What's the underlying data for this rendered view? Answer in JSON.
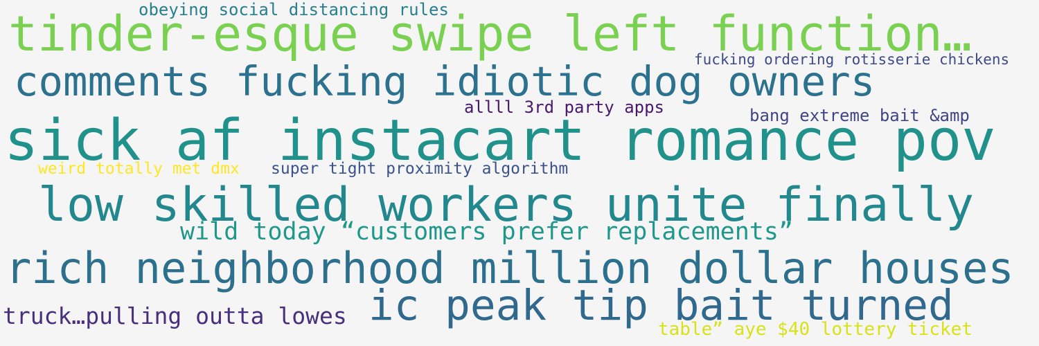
{
  "word_cloud": {
    "background": "#f5f5f5",
    "phrases": [
      {
        "text": "obeying social distancing rules",
        "color": "#287f8e"
      },
      {
        "text": "tinder-esque swipe left function…",
        "color": "#7ad151"
      },
      {
        "text": "fucking ordering rotisserie chickens",
        "color": "#3e4a89"
      },
      {
        "text": "comments fucking idiotic dog owners",
        "color": "#2c728e"
      },
      {
        "text": "allll 3rd party apps",
        "color": "#48186a"
      },
      {
        "text": "bang extreme bait &amp",
        "color": "#414487"
      },
      {
        "text": "sick af instacart romance pov",
        "color": "#21918c"
      },
      {
        "text": "weird totally met dmx",
        "color": "#fde725"
      },
      {
        "text": "super tight proximity algorithm",
        "color": "#3b528b"
      },
      {
        "text": "low skilled workers unite finally",
        "color": "#23888e"
      },
      {
        "text": "wild today “customers prefer replacements”",
        "color": "#1f988b"
      },
      {
        "text": "rich neighborhood million dollar houses",
        "color": "#2d708e"
      },
      {
        "text": "ic peak tip bait turned",
        "color": "#31688e"
      },
      {
        "text": "truck…pulling outta lowes",
        "color": "#472f7d"
      },
      {
        "text": "table” aye $40 lottery ticket",
        "color": "#d8e219"
      }
    ]
  }
}
